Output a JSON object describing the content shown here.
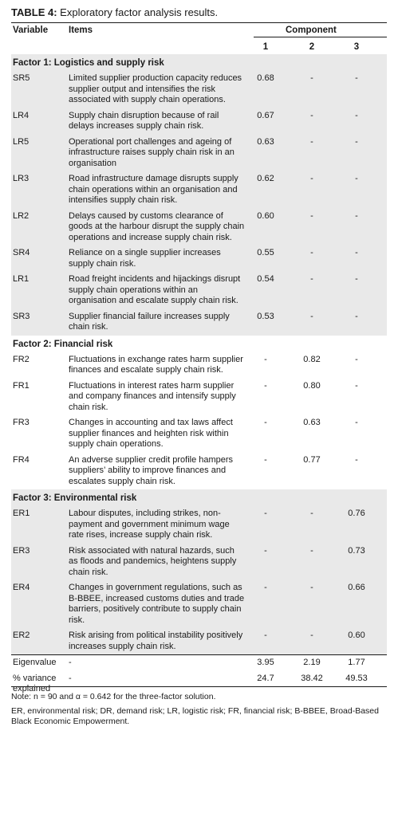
{
  "caption": {
    "label": "TABLE 4:",
    "text": "Exploratory factor analysis results."
  },
  "header": {
    "variable": "Variable",
    "items": "Items",
    "component": "Component",
    "c1": "1",
    "c2": "2",
    "c3": "3"
  },
  "factors": [
    {
      "title": "Factor 1: Logistics and supply risk",
      "rows": [
        {
          "var": "SR5",
          "item": "Limited supplier production capacity reduces supplier output and intensifies the risk associated with supply chain operations.",
          "c1": "0.68",
          "c2": "-",
          "c3": "-"
        },
        {
          "var": "LR4",
          "item": "Supply chain disruption because of rail delays increases supply chain risk.",
          "c1": "0.67",
          "c2": "-",
          "c3": "-"
        },
        {
          "var": "LR5",
          "item": "Operational port challenges and ageing of infrastructure raises supply chain risk in an organisation",
          "c1": "0.63",
          "c2": "-",
          "c3": "-"
        },
        {
          "var": "LR3",
          "item": "Road infrastructure damage disrupts supply chain operations within an organisation and intensifies supply chain risk.",
          "c1": "0.62",
          "c2": "-",
          "c3": "-"
        },
        {
          "var": "LR2",
          "item": "Delays caused by customs clearance of goods at the harbour disrupt the supply chain operations and increase supply chain risk.",
          "c1": "0.60",
          "c2": "-",
          "c3": "-"
        },
        {
          "var": "SR4",
          "item": "Reliance on a single supplier increases supply chain risk.",
          "c1": "0.55",
          "c2": "-",
          "c3": "-"
        },
        {
          "var": "LR1",
          "item": "Road freight incidents and hijackings disrupt supply chain operations within an organisation and escalate supply chain risk.",
          "c1": "0.54",
          "c2": "-",
          "c3": "-"
        },
        {
          "var": "SR3",
          "item": "Supplier financial failure increases supply chain risk.",
          "c1": "0.53",
          "c2": "-",
          "c3": "-"
        }
      ]
    },
    {
      "title": "Factor 2: Financial risk",
      "rows": [
        {
          "var": "FR2",
          "item": "Fluctuations in exchange rates harm supplier finances and escalate supply chain risk.",
          "c1": "-",
          "c2": "0.82",
          "c3": "-"
        },
        {
          "var": "FR1",
          "item": "Fluctuations in interest rates harm supplier and company finances and intensify supply chain risk.",
          "c1": "-",
          "c2": "0.80",
          "c3": "-"
        },
        {
          "var": "FR3",
          "item": "Changes in accounting and tax laws affect supplier finances and heighten risk within supply chain operations.",
          "c1": "-",
          "c2": "0.63",
          "c3": "-"
        },
        {
          "var": "FR4",
          "item": "An adverse supplier credit profile hampers suppliers’ ability to improve finances and escalates supply chain risk.",
          "c1": "-",
          "c2": "0.77",
          "c3": "-"
        }
      ]
    },
    {
      "title": "Factor 3: Environmental risk",
      "rows": [
        {
          "var": "ER1",
          "item": "Labour disputes, including strikes, non-payment and government minimum wage rate rises, increase supply chain risk.",
          "c1": "-",
          "c2": "-",
          "c3": "0.76"
        },
        {
          "var": "ER3",
          "item": "Risk associated with natural hazards, such as floods and pandemics, heightens supply chain risk.",
          "c1": "-",
          "c2": "-",
          "c3": "0.73"
        },
        {
          "var": "ER4",
          "item": "Changes in government regulations, such as B-BBEE, increased customs duties and trade barriers, positively contribute to supply chain risk.",
          "c1": "-",
          "c2": "-",
          "c3": "0.66"
        },
        {
          "var": "ER2",
          "item": "Risk arising from political instability positively increases supply chain risk.",
          "c1": "-",
          "c2": "-",
          "c3": "0.60"
        }
      ]
    }
  ],
  "summary": [
    {
      "var": "Eigenvalue",
      "item": "-",
      "c1": "3.95",
      "c2": "2.19",
      "c3": "1.77"
    },
    {
      "var": "% variance explained",
      "item": "-",
      "c1": "24.7",
      "c2": "38.42",
      "c3": "49.53"
    }
  ],
  "notes": {
    "note": "Note: n = 90 and α = 0.642 for the three-factor solution.",
    "abbrev": "ER, environmental risk; DR, demand risk; LR, logistic risk; FR, financial risk; B-BBEE, Broad-Based Black Economic Empowerment."
  },
  "colors": {
    "shade": "#e9e9e9",
    "rule": "#1a1a1a"
  }
}
